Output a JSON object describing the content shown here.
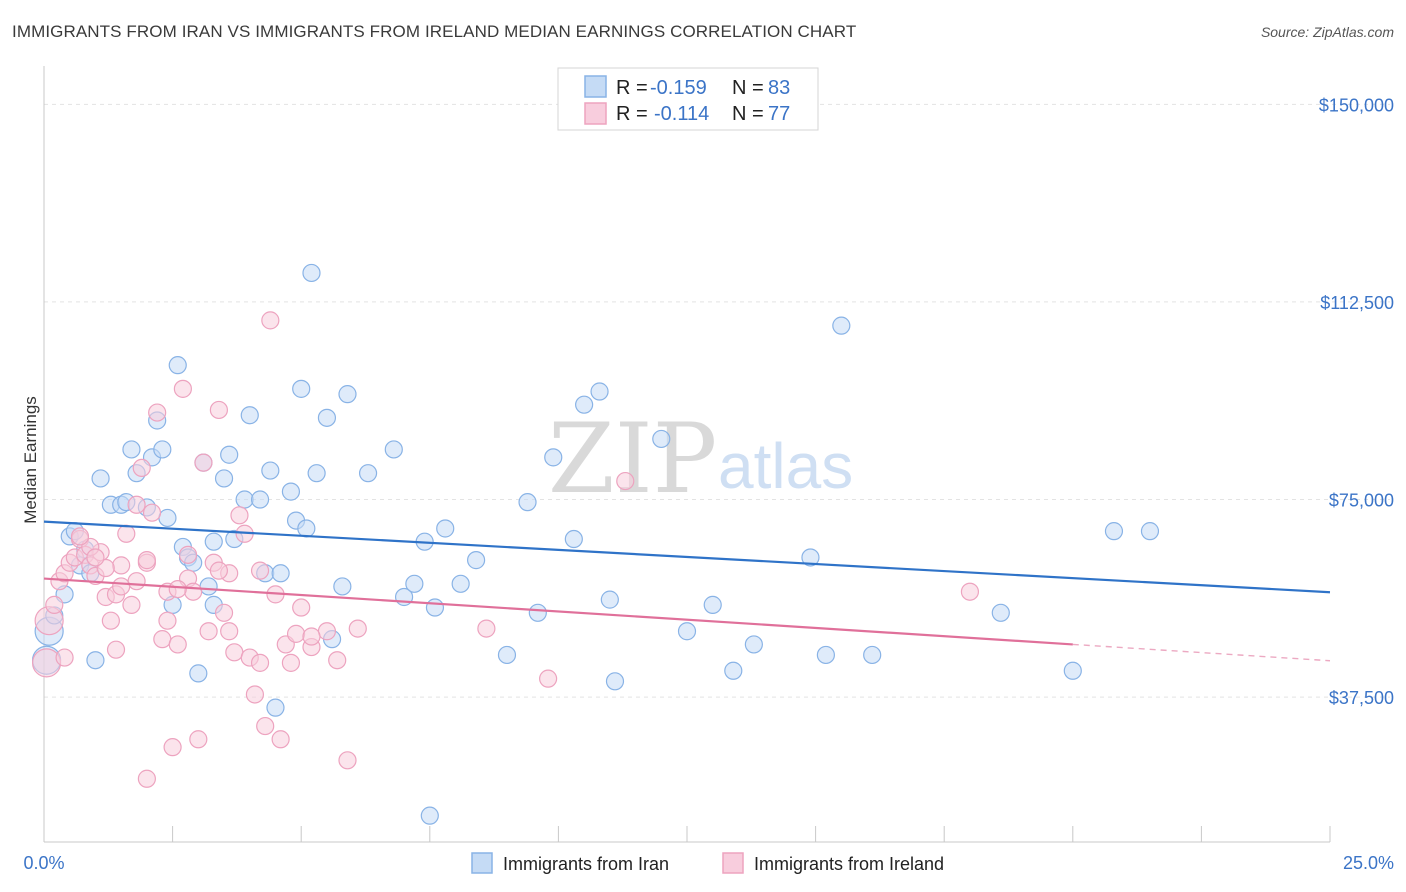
{
  "title": "IMMIGRANTS FROM IRAN VS IMMIGRANTS FROM IRELAND MEDIAN EARNINGS CORRELATION CHART",
  "source": "Source: ZipAtlas.com",
  "watermark": {
    "zip": "ZIP",
    "atlas": "atlas"
  },
  "legend_top": [
    {
      "r_label": "R =",
      "r_value": "-0.159",
      "n_label": "N =",
      "n_value": "83"
    },
    {
      "r_label": "R =",
      "r_value": "-0.114",
      "n_label": "N =",
      "n_value": "77"
    }
  ],
  "chart_data": {
    "type": "scatter",
    "title": "IMMIGRANTS FROM IRAN VS IMMIGRANTS FROM IRELAND MEDIAN EARNINGS CORRELATION CHART",
    "xlabel": "",
    "ylabel": "Median Earnings",
    "xlim": [
      0,
      25
    ],
    "ylim": [
      10000,
      155000
    ],
    "x_tick_labels": [
      "0.0%",
      "25.0%"
    ],
    "y_ticks": [
      37500,
      75000,
      112500,
      150000
    ],
    "y_tick_labels": [
      "$37,500",
      "$75,000",
      "$112,500",
      "$150,000"
    ],
    "grid": true,
    "legend_position": "top-center",
    "series": [
      {
        "name": "Immigrants from Iran",
        "color": "#89b3e6",
        "fill": "#c5dbf5",
        "line_color": "#2f73c8",
        "trend": {
          "x0": 0,
          "y0": 70800,
          "x1": 25,
          "y1": 57400
        },
        "points": [
          [
            0.05,
            44500
          ],
          [
            0.1,
            50000
          ],
          [
            0.2,
            53000
          ],
          [
            0.4,
            57000
          ],
          [
            0.5,
            68000
          ],
          [
            0.6,
            69000
          ],
          [
            0.7,
            62500
          ],
          [
            0.8,
            65500
          ],
          [
            0.9,
            61000
          ],
          [
            1.0,
            44500
          ],
          [
            1.1,
            79000
          ],
          [
            1.3,
            74000
          ],
          [
            1.5,
            74000
          ],
          [
            1.6,
            74500
          ],
          [
            1.7,
            84500
          ],
          [
            1.8,
            80000
          ],
          [
            2.0,
            73500
          ],
          [
            2.1,
            83000
          ],
          [
            2.2,
            90000
          ],
          [
            2.3,
            84500
          ],
          [
            2.4,
            71500
          ],
          [
            2.5,
            55000
          ],
          [
            2.6,
            100500
          ],
          [
            2.7,
            66000
          ],
          [
            2.8,
            64000
          ],
          [
            2.9,
            63000
          ],
          [
            3.0,
            42000
          ],
          [
            3.1,
            82000
          ],
          [
            3.2,
            58500
          ],
          [
            3.3,
            67000
          ],
          [
            3.5,
            79000
          ],
          [
            3.6,
            83500
          ],
          [
            3.7,
            67500
          ],
          [
            3.9,
            75000
          ],
          [
            4.0,
            91000
          ],
          [
            4.2,
            75000
          ],
          [
            4.3,
            61000
          ],
          [
            4.4,
            80500
          ],
          [
            4.5,
            35500
          ],
          [
            4.6,
            61000
          ],
          [
            4.8,
            76500
          ],
          [
            4.9,
            71000
          ],
          [
            5.0,
            96000
          ],
          [
            5.1,
            69500
          ],
          [
            5.2,
            118000
          ],
          [
            5.3,
            80000
          ],
          [
            5.5,
            90500
          ],
          [
            5.6,
            48500
          ],
          [
            5.8,
            58500
          ],
          [
            5.9,
            95000
          ],
          [
            6.3,
            80000
          ],
          [
            6.8,
            84500
          ],
          [
            7.0,
            56500
          ],
          [
            7.2,
            59000
          ],
          [
            7.4,
            67000
          ],
          [
            7.6,
            54500
          ],
          [
            7.8,
            69500
          ],
          [
            8.1,
            59000
          ],
          [
            8.4,
            63500
          ],
          [
            9.0,
            45500
          ],
          [
            9.4,
            74500
          ],
          [
            9.6,
            53500
          ],
          [
            9.9,
            83000
          ],
          [
            10.3,
            67500
          ],
          [
            10.5,
            93000
          ],
          [
            10.8,
            95500
          ],
          [
            11.0,
            56000
          ],
          [
            11.1,
            40500
          ],
          [
            12.0,
            86500
          ],
          [
            12.5,
            50000
          ],
          [
            13.0,
            55000
          ],
          [
            13.4,
            42500
          ],
          [
            13.8,
            47500
          ],
          [
            14.9,
            64000
          ],
          [
            15.2,
            45500
          ],
          [
            15.5,
            108000
          ],
          [
            16.1,
            45500
          ],
          [
            18.6,
            53500
          ],
          [
            20.0,
            42500
          ],
          [
            20.8,
            69000
          ],
          [
            21.5,
            69000
          ],
          [
            7.5,
            15000
          ],
          [
            3.3,
            55000
          ]
        ]
      },
      {
        "name": "Immigrants from Ireland",
        "color": "#eda3bf",
        "fill": "#f8cddd",
        "line_color": "#e0709a",
        "trend": {
          "x0": 0,
          "y0": 60000,
          "x1": 20,
          "y1": 47500,
          "dash_to_x": 25,
          "dash_to_y": 44400
        },
        "points": [
          [
            0.05,
            44000
          ],
          [
            0.1,
            52000
          ],
          [
            0.2,
            55000
          ],
          [
            0.3,
            59500
          ],
          [
            0.4,
            61000
          ],
          [
            0.5,
            63000
          ],
          [
            0.6,
            64000
          ],
          [
            0.7,
            67500
          ],
          [
            0.8,
            64500
          ],
          [
            0.9,
            62500
          ],
          [
            1.0,
            60500
          ],
          [
            1.1,
            65000
          ],
          [
            1.2,
            56500
          ],
          [
            1.3,
            52000
          ],
          [
            1.4,
            57000
          ],
          [
            1.5,
            62500
          ],
          [
            1.6,
            68500
          ],
          [
            1.7,
            55000
          ],
          [
            1.8,
            59500
          ],
          [
            1.9,
            81000
          ],
          [
            2.0,
            63000
          ],
          [
            2.1,
            72500
          ],
          [
            2.2,
            91500
          ],
          [
            2.3,
            48500
          ],
          [
            2.4,
            57500
          ],
          [
            2.5,
            28000
          ],
          [
            2.6,
            47500
          ],
          [
            2.7,
            96000
          ],
          [
            2.8,
            60000
          ],
          [
            2.9,
            57500
          ],
          [
            3.0,
            29500
          ],
          [
            3.1,
            82000
          ],
          [
            3.2,
            50000
          ],
          [
            3.3,
            63000
          ],
          [
            3.4,
            92000
          ],
          [
            3.5,
            53500
          ],
          [
            3.6,
            61000
          ],
          [
            3.7,
            46000
          ],
          [
            3.8,
            72000
          ],
          [
            3.9,
            68500
          ],
          [
            4.0,
            45000
          ],
          [
            4.1,
            38000
          ],
          [
            4.2,
            61500
          ],
          [
            4.3,
            32000
          ],
          [
            4.4,
            109000
          ],
          [
            4.5,
            57000
          ],
          [
            4.6,
            29500
          ],
          [
            4.7,
            47500
          ],
          [
            4.8,
            44000
          ],
          [
            4.9,
            49500
          ],
          [
            5.0,
            54500
          ],
          [
            5.2,
            47000
          ],
          [
            5.5,
            50000
          ],
          [
            5.7,
            44500
          ],
          [
            5.9,
            25500
          ],
          [
            6.1,
            50500
          ],
          [
            2.0,
            22000
          ],
          [
            9.8,
            41000
          ],
          [
            11.3,
            78500
          ],
          [
            18.0,
            57500
          ],
          [
            1.2,
            62000
          ],
          [
            1.8,
            74000
          ],
          [
            2.4,
            52000
          ],
          [
            0.9,
            66000
          ],
          [
            1.5,
            58500
          ],
          [
            2.8,
            64500
          ],
          [
            3.4,
            61500
          ],
          [
            1.0,
            64000
          ],
          [
            0.7,
            68000
          ],
          [
            2.0,
            63500
          ],
          [
            3.6,
            50000
          ],
          [
            4.2,
            44000
          ],
          [
            1.4,
            46500
          ],
          [
            5.2,
            49000
          ],
          [
            2.6,
            58000
          ],
          [
            0.4,
            45000
          ],
          [
            8.6,
            50500
          ]
        ]
      }
    ]
  }
}
